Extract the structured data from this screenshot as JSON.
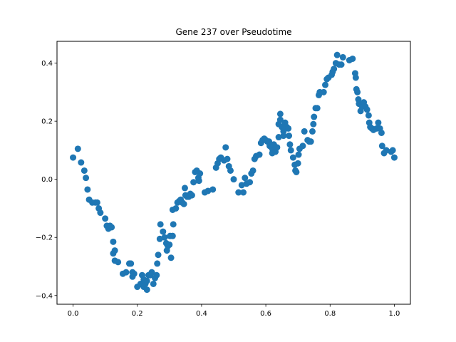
{
  "chart_data": {
    "type": "scatter",
    "title": "Gene 237 over Pseudotime",
    "xlabel": "",
    "ylabel": "",
    "xlim": [
      -0.05,
      1.05
    ],
    "ylim": [
      -0.43,
      0.475
    ],
    "grid": false,
    "color": "#1f77b4",
    "x_ticks": [
      0.0,
      0.2,
      0.4,
      0.6,
      0.8,
      1.0
    ],
    "x_tick_labels": [
      "0.0",
      "0.2",
      "0.4",
      "0.6",
      "0.8",
      "1.0"
    ],
    "y_ticks": [
      -0.4,
      -0.2,
      0.0,
      0.2,
      0.4
    ],
    "y_tick_labels": [
      "−0.4",
      "−0.2",
      "0.0",
      "0.2",
      "0.4"
    ],
    "points": [
      [
        0.0,
        0.075
      ],
      [
        0.015,
        0.105
      ],
      [
        0.025,
        0.058
      ],
      [
        0.035,
        0.03
      ],
      [
        0.04,
        0.005
      ],
      [
        0.045,
        -0.035
      ],
      [
        0.05,
        -0.07
      ],
      [
        0.06,
        -0.08
      ],
      [
        0.07,
        -0.08
      ],
      [
        0.075,
        -0.08
      ],
      [
        0.08,
        -0.1
      ],
      [
        0.085,
        -0.115
      ],
      [
        0.1,
        -0.135
      ],
      [
        0.105,
        -0.16
      ],
      [
        0.11,
        -0.17
      ],
      [
        0.115,
        -0.16
      ],
      [
        0.12,
        -0.165
      ],
      [
        0.125,
        -0.215
      ],
      [
        0.125,
        -0.255
      ],
      [
        0.13,
        -0.245
      ],
      [
        0.13,
        -0.28
      ],
      [
        0.14,
        -0.285
      ],
      [
        0.155,
        -0.325
      ],
      [
        0.165,
        -0.32
      ],
      [
        0.175,
        -0.29
      ],
      [
        0.18,
        -0.29
      ],
      [
        0.185,
        -0.32
      ],
      [
        0.185,
        -0.335
      ],
      [
        0.19,
        -0.325
      ],
      [
        0.2,
        -0.37
      ],
      [
        0.21,
        -0.36
      ],
      [
        0.215,
        -0.33
      ],
      [
        0.22,
        -0.345
      ],
      [
        0.22,
        -0.37
      ],
      [
        0.225,
        -0.36
      ],
      [
        0.23,
        -0.38
      ],
      [
        0.23,
        -0.35
      ],
      [
        0.235,
        -0.33
      ],
      [
        0.24,
        -0.33
      ],
      [
        0.245,
        -0.32
      ],
      [
        0.25,
        -0.36
      ],
      [
        0.255,
        -0.34
      ],
      [
        0.26,
        -0.33
      ],
      [
        0.262,
        -0.29
      ],
      [
        0.265,
        -0.26
      ],
      [
        0.27,
        -0.205
      ],
      [
        0.272,
        -0.155
      ],
      [
        0.28,
        -0.18
      ],
      [
        0.285,
        -0.2
      ],
      [
        0.29,
        -0.22
      ],
      [
        0.292,
        -0.245
      ],
      [
        0.295,
        -0.23
      ],
      [
        0.3,
        -0.225
      ],
      [
        0.302,
        -0.195
      ],
      [
        0.305,
        -0.27
      ],
      [
        0.31,
        -0.195
      ],
      [
        0.312,
        -0.155
      ],
      [
        0.31,
        -0.105
      ],
      [
        0.32,
        -0.1
      ],
      [
        0.325,
        -0.08
      ],
      [
        0.33,
        -0.075
      ],
      [
        0.335,
        -0.07
      ],
      [
        0.34,
        -0.08
      ],
      [
        0.345,
        -0.085
      ],
      [
        0.348,
        -0.03
      ],
      [
        0.35,
        -0.055
      ],
      [
        0.355,
        -0.06
      ],
      [
        0.36,
        -0.06
      ],
      [
        0.365,
        -0.05
      ],
      [
        0.37,
        -0.055
      ],
      [
        0.375,
        -0.01
      ],
      [
        0.38,
        0.025
      ],
      [
        0.385,
        0.03
      ],
      [
        0.39,
        0.005
      ],
      [
        0.392,
        -0.005
      ],
      [
        0.395,
        0.02
      ],
      [
        0.41,
        -0.045
      ],
      [
        0.42,
        -0.04
      ],
      [
        0.435,
        -0.035
      ],
      [
        0.445,
        0.04
      ],
      [
        0.45,
        0.055
      ],
      [
        0.455,
        0.07
      ],
      [
        0.46,
        0.075
      ],
      [
        0.47,
        0.065
      ],
      [
        0.475,
        0.11
      ],
      [
        0.48,
        0.07
      ],
      [
        0.485,
        0.045
      ],
      [
        0.49,
        0.03
      ],
      [
        0.5,
        0.0
      ],
      [
        0.515,
        -0.045
      ],
      [
        0.525,
        -0.02
      ],
      [
        0.53,
        -0.045
      ],
      [
        0.535,
        0.005
      ],
      [
        0.54,
        -0.015
      ],
      [
        0.55,
        -0.01
      ],
      [
        0.555,
        0.02
      ],
      [
        0.56,
        0.03
      ],
      [
        0.565,
        0.07
      ],
      [
        0.57,
        0.08
      ],
      [
        0.58,
        0.085
      ],
      [
        0.585,
        0.125
      ],
      [
        0.59,
        0.135
      ],
      [
        0.595,
        0.14
      ],
      [
        0.6,
        0.135
      ],
      [
        0.605,
        0.13
      ],
      [
        0.61,
        0.13
      ],
      [
        0.612,
        0.115
      ],
      [
        0.62,
        0.105
      ],
      [
        0.62,
        0.09
      ],
      [
        0.625,
        0.12
      ],
      [
        0.63,
        0.095
      ],
      [
        0.635,
        0.11
      ],
      [
        0.64,
        0.145
      ],
      [
        0.64,
        0.19
      ],
      [
        0.645,
        0.225
      ],
      [
        0.645,
        0.205
      ],
      [
        0.65,
        0.18
      ],
      [
        0.655,
        0.165
      ],
      [
        0.655,
        0.15
      ],
      [
        0.66,
        0.195
      ],
      [
        0.665,
        0.18
      ],
      [
        0.67,
        0.175
      ],
      [
        0.672,
        0.15
      ],
      [
        0.675,
        0.12
      ],
      [
        0.678,
        0.1
      ],
      [
        0.685,
        0.075
      ],
      [
        0.69,
        0.05
      ],
      [
        0.692,
        0.03
      ],
      [
        0.695,
        0.025
      ],
      [
        0.7,
        0.055
      ],
      [
        0.702,
        0.085
      ],
      [
        0.705,
        0.105
      ],
      [
        0.715,
        0.115
      ],
      [
        0.72,
        0.165
      ],
      [
        0.73,
        0.135
      ],
      [
        0.735,
        0.13
      ],
      [
        0.74,
        0.13
      ],
      [
        0.745,
        0.165
      ],
      [
        0.748,
        0.19
      ],
      [
        0.75,
        0.215
      ],
      [
        0.755,
        0.245
      ],
      [
        0.76,
        0.245
      ],
      [
        0.765,
        0.29
      ],
      [
        0.768,
        0.3
      ],
      [
        0.78,
        0.3
      ],
      [
        0.785,
        0.325
      ],
      [
        0.79,
        0.345
      ],
      [
        0.795,
        0.35
      ],
      [
        0.805,
        0.36
      ],
      [
        0.808,
        0.37
      ],
      [
        0.812,
        0.38
      ],
      [
        0.818,
        0.4
      ],
      [
        0.822,
        0.428
      ],
      [
        0.828,
        0.395
      ],
      [
        0.835,
        0.395
      ],
      [
        0.84,
        0.42
      ],
      [
        0.86,
        0.41
      ],
      [
        0.87,
        0.415
      ],
      [
        0.878,
        0.365
      ],
      [
        0.88,
        0.35
      ],
      [
        0.882,
        0.31
      ],
      [
        0.885,
        0.3
      ],
      [
        0.888,
        0.275
      ],
      [
        0.89,
        0.26
      ],
      [
        0.895,
        0.235
      ],
      [
        0.9,
        0.25
      ],
      [
        0.905,
        0.265
      ],
      [
        0.91,
        0.25
      ],
      [
        0.915,
        0.24
      ],
      [
        0.92,
        0.22
      ],
      [
        0.922,
        0.195
      ],
      [
        0.925,
        0.18
      ],
      [
        0.93,
        0.175
      ],
      [
        0.935,
        0.17
      ],
      [
        0.945,
        0.175
      ],
      [
        0.95,
        0.195
      ],
      [
        0.955,
        0.175
      ],
      [
        0.96,
        0.16
      ],
      [
        0.962,
        0.115
      ],
      [
        0.968,
        0.09
      ],
      [
        0.975,
        0.1
      ],
      [
        0.99,
        0.095
      ],
      [
        0.995,
        0.1
      ],
      [
        1.0,
        0.075
      ]
    ]
  }
}
